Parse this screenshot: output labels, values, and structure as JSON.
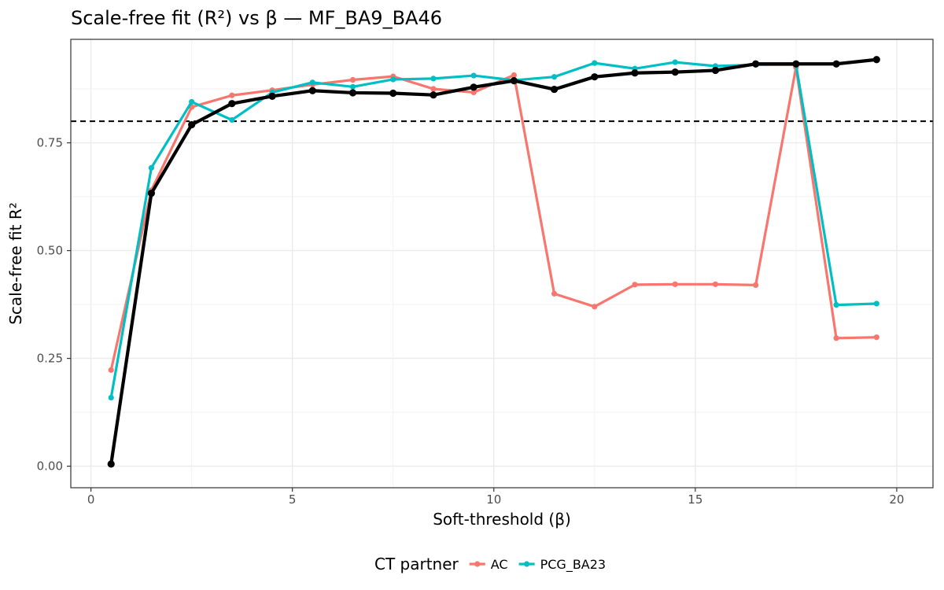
{
  "chart_data": {
    "type": "line",
    "title": "Scale-free fit (R²) vs β — MF_BA9_BA46",
    "xlabel": "Soft-threshold (β)",
    "ylabel": "Scale-free fit R²",
    "xlim": [
      -0.5,
      20.9
    ],
    "ylim": [
      -0.05,
      0.99
    ],
    "x_ticks": [
      0,
      5,
      10,
      15,
      20
    ],
    "x_tick_labels": [
      "0",
      "5",
      "10",
      "15",
      "20"
    ],
    "y_ticks": [
      0.0,
      0.25,
      0.5,
      0.75
    ],
    "y_tick_labels": [
      "0.00",
      "0.25",
      "0.50",
      "0.75"
    ],
    "grid": true,
    "threshold_line": {
      "y": 0.8,
      "style": "dashed",
      "color": "#000000"
    },
    "legend": {
      "title": "CT partner",
      "placement": "bottom"
    },
    "series": [
      {
        "name": "AC",
        "color": "#F8766D",
        "in_legend": true,
        "x": [
          0.5,
          1.5,
          2.5,
          3.5,
          4.5,
          5.5,
          6.5,
          7.5,
          8.5,
          9.5,
          10.5,
          11.5,
          12.5,
          13.5,
          14.5,
          15.5,
          16.5,
          17.5,
          18.5,
          19.5
        ],
        "y": [
          0.223,
          0.64,
          0.833,
          0.86,
          0.872,
          0.885,
          0.896,
          0.904,
          0.875,
          0.867,
          0.907,
          0.4,
          0.37,
          0.421,
          0.422,
          0.422,
          0.42,
          0.925,
          0.297,
          0.299
        ]
      },
      {
        "name": "PCG_BA23",
        "color": "#00BFC4",
        "in_legend": true,
        "x": [
          0.5,
          1.5,
          2.5,
          3.5,
          4.5,
          5.5,
          6.5,
          7.5,
          8.5,
          9.5,
          10.5,
          11.5,
          12.5,
          13.5,
          14.5,
          15.5,
          16.5,
          17.5,
          18.5,
          19.5
        ],
        "y": [
          0.159,
          0.692,
          0.845,
          0.803,
          0.867,
          0.89,
          0.88,
          0.897,
          0.899,
          0.906,
          0.895,
          0.903,
          0.935,
          0.922,
          0.937,
          0.928,
          0.931,
          0.931,
          0.374,
          0.377
        ]
      },
      {
        "color": "#000000",
        "in_legend": false,
        "x": [
          0.5,
          1.5,
          2.5,
          3.5,
          4.5,
          5.5,
          6.5,
          7.5,
          8.5,
          9.5,
          10.5,
          11.5,
          12.5,
          13.5,
          14.5,
          15.5,
          16.5,
          17.5,
          18.5,
          19.5
        ],
        "y": [
          0.005,
          0.633,
          0.792,
          0.841,
          0.858,
          0.871,
          0.866,
          0.865,
          0.861,
          0.879,
          0.894,
          0.874,
          0.903,
          0.912,
          0.914,
          0.918,
          0.933,
          0.933,
          0.933,
          0.943
        ]
      }
    ]
  }
}
